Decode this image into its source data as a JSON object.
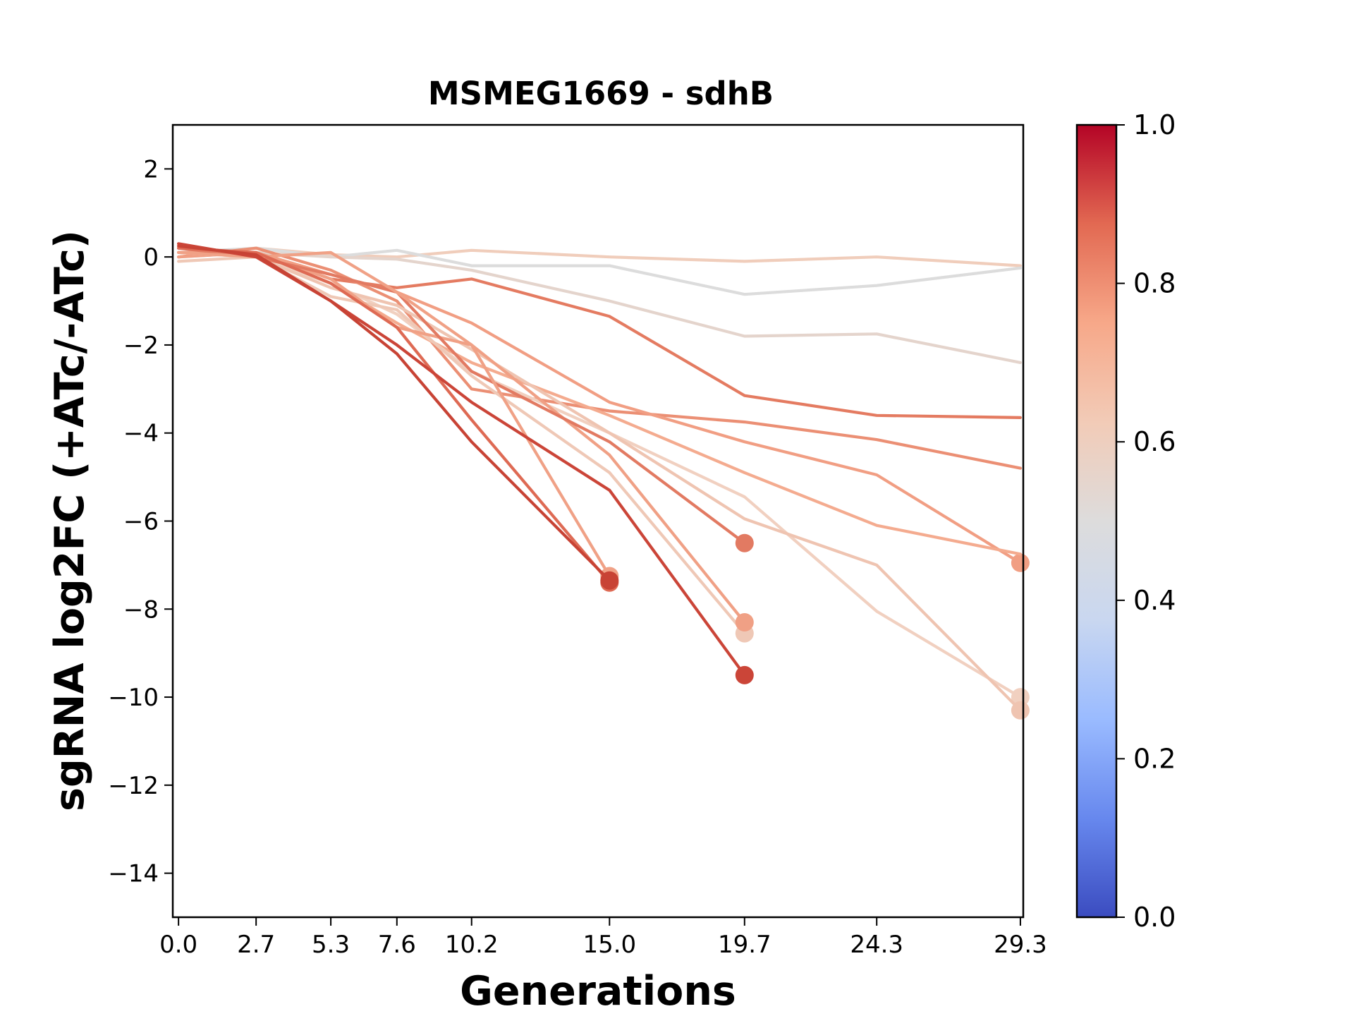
{
  "chart_data": {
    "type": "line",
    "title": "MSMEG1669 - sdhB",
    "xlabel": "Generations",
    "ylabel": "sgRNA log2FC (+ATc/-ATc)",
    "x": [
      0.0,
      2.7,
      5.3,
      7.6,
      10.2,
      15.0,
      19.7,
      24.3,
      29.3
    ],
    "x_tick_labels": [
      "0.0",
      "2.7",
      "5.3",
      "7.6",
      "10.2",
      "15.0",
      "19.7",
      "24.3",
      "29.3"
    ],
    "xlim": [
      -0.2,
      29.4
    ],
    "ylim": [
      -15,
      3
    ],
    "y_ticks": [
      2,
      0,
      -2,
      -4,
      -6,
      -8,
      -10,
      -12,
      -14
    ],
    "y_tick_labels": [
      "2",
      "0",
      "−2",
      "−4",
      "−6",
      "−8",
      "−10",
      "−12",
      "−14"
    ],
    "grid": false,
    "colormap": "coolwarm",
    "colorbar": {
      "range": [
        0.0,
        1.0
      ],
      "ticks": [
        0.0,
        0.2,
        0.4,
        0.6,
        0.8,
        1.0
      ],
      "tick_labels": [
        "0.0",
        "0.2",
        "0.4",
        "0.6",
        "0.8",
        "1.0"
      ],
      "stops": [
        "#3b4cc0",
        "#6788ee",
        "#9abbff",
        "#c9d7f0",
        "#dddcdc",
        "#f2cbb7",
        "#f7a889",
        "#e26952",
        "#b40426"
      ]
    },
    "series": [
      {
        "values": [
          0.0,
          0.2,
          0.05,
          0.0,
          0.15,
          0.0,
          -0.1,
          0.0,
          -0.2
        ],
        "color": "#f0cdbb",
        "end_marker": false
      },
      {
        "values": [
          0.1,
          0.2,
          0.0,
          0.15,
          -0.2,
          -0.2,
          -0.85,
          -0.65,
          -0.25
        ],
        "color": "#dcdcdc",
        "end_marker": false
      },
      {
        "values": [
          0.0,
          0.1,
          0.0,
          -0.05,
          -0.3,
          -1.0,
          -1.8,
          -1.75,
          -2.4
        ],
        "color": "#e4d4cc",
        "end_marker": false
      },
      {
        "values": [
          0.1,
          0.1,
          -0.5,
          -0.7,
          -0.5,
          -1.35,
          -3.15,
          -3.6,
          -3.65
        ],
        "color": "#e47b61",
        "end_marker": false
      },
      {
        "values": [
          0.0,
          0.2,
          -0.3,
          -1.0,
          -3.0,
          -3.5,
          -3.75,
          -4.15,
          -4.8
        ],
        "color": "#eb8f74",
        "end_marker": false
      },
      {
        "values": [
          0.0,
          0.1,
          -0.4,
          -0.8,
          -1.5,
          -3.3,
          -4.2,
          -4.95,
          -6.95
        ],
        "color": "#f19e83",
        "end_marker": true
      },
      {
        "values": [
          0.1,
          0.1,
          -0.6,
          -1.5,
          -2.4,
          -3.6,
          -4.9,
          -6.1,
          -6.75
        ],
        "color": "#f4ab8f",
        "end_marker": false
      },
      {
        "values": [
          0.1,
          0.0,
          -0.6,
          -1.3,
          -2.6,
          -4.0,
          -5.45,
          -8.05,
          -10.0
        ],
        "color": "#f1d0c0",
        "end_marker": true
      },
      {
        "values": [
          0.1,
          0.0,
          -0.7,
          -1.1,
          -2.1,
          -4.0,
          -5.95,
          -7.0,
          -10.3
        ],
        "color": "#efc4b1",
        "end_marker": true
      },
      {
        "values": [
          -0.1,
          0.0,
          -0.9,
          -1.2,
          -2.7,
          -4.9,
          -8.55,
          null,
          null
        ],
        "color": "#efc8b6",
        "end_marker": true
      },
      {
        "values": [
          0.1,
          0.1,
          -0.5,
          -1.6,
          -2.0,
          -4.5,
          -8.3,
          null,
          null
        ],
        "color": "#f0a085",
        "end_marker": true
      },
      {
        "values": [
          0.2,
          0.0,
          -0.4,
          -0.8,
          -2.6,
          -4.2,
          -6.5,
          null,
          null
        ],
        "color": "#e27a62",
        "end_marker": true
      },
      {
        "values": [
          0.1,
          0.0,
          0.1,
          -0.8,
          -2.0,
          -7.25,
          null,
          null,
          null
        ],
        "color": "#f0a186",
        "end_marker": true
      },
      {
        "values": [
          0.2,
          0.1,
          -0.6,
          -1.6,
          -3.7,
          -7.4,
          null,
          null,
          null
        ],
        "color": "#de6a54",
        "end_marker": true
      },
      {
        "values": [
          0.3,
          0.0,
          -1.0,
          -2.0,
          -3.3,
          -5.3,
          -9.5,
          null,
          null
        ],
        "color": "#cb4538",
        "end_marker": true
      },
      {
        "values": [
          0.25,
          0.05,
          -1.0,
          -2.2,
          -4.2,
          -7.35,
          null,
          null,
          null
        ],
        "color": "#c84335",
        "end_marker": true
      }
    ]
  }
}
